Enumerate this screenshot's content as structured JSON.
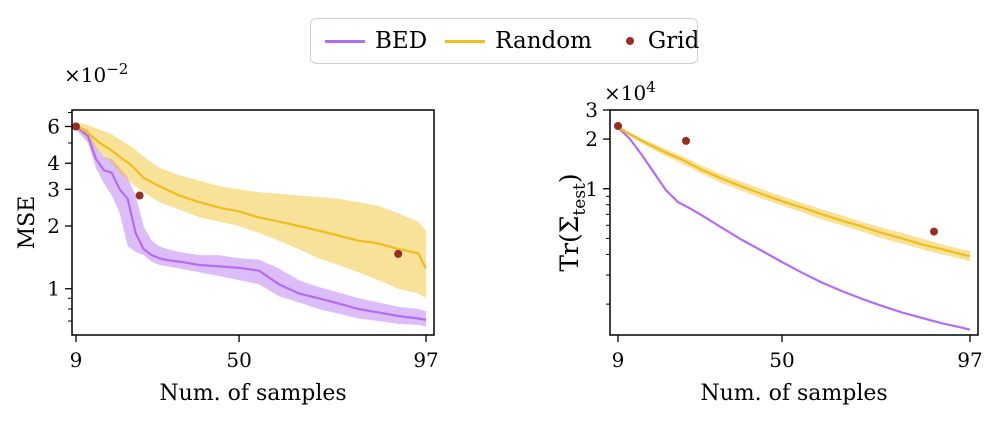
{
  "legend": {
    "items": [
      {
        "label": "BED",
        "color": "#b46cf2",
        "kind": "line"
      },
      {
        "label": "Random",
        "color": "#efbd1d",
        "kind": "line"
      },
      {
        "label": "Grid",
        "color": "#962c24",
        "kind": "dot"
      }
    ]
  },
  "chart_data": [
    {
      "type": "line",
      "yscale": "log",
      "xlabel": "Num. of samples",
      "ylabel": "MSE",
      "y_exponent_label": "×10",
      "y_exponent_power": "−2",
      "xlim": [
        8,
        99
      ],
      "ylim": [
        0.6,
        7.2
      ],
      "xticks": [
        9,
        50,
        97
      ],
      "yticks": [
        {
          "v": 1,
          "label": "1"
        },
        {
          "v": 2,
          "label": "2"
        },
        {
          "v": 3,
          "label": "3"
        },
        {
          "v": 4,
          "label": "4"
        },
        {
          "v": 6,
          "label": "6"
        }
      ],
      "yminor": [
        0.7,
        0.8,
        0.9,
        5,
        7
      ],
      "series": [
        {
          "name": "BED",
          "color": "#b46cf2",
          "x": [
            9,
            12,
            14,
            16,
            18,
            20,
            22,
            24,
            26,
            28,
            30,
            32,
            35,
            40,
            45,
            50,
            55,
            60,
            65,
            70,
            75,
            80,
            85,
            90,
            95,
            97
          ],
          "y": [
            6.0,
            5.4,
            4.2,
            3.7,
            3.6,
            3.0,
            2.7,
            1.85,
            1.55,
            1.45,
            1.4,
            1.37,
            1.35,
            1.3,
            1.28,
            1.26,
            1.22,
            1.05,
            0.95,
            0.9,
            0.85,
            0.8,
            0.77,
            0.74,
            0.72,
            0.71
          ],
          "lower": [
            5.8,
            5.0,
            3.8,
            3.2,
            2.8,
            2.3,
            1.6,
            1.5,
            1.45,
            1.35,
            1.3,
            1.28,
            1.25,
            1.2,
            1.15,
            1.1,
            1.05,
            0.92,
            0.86,
            0.8,
            0.76,
            0.72,
            0.7,
            0.68,
            0.67,
            0.66
          ],
          "upper": [
            6.1,
            5.8,
            4.8,
            4.3,
            4.2,
            3.8,
            3.4,
            2.8,
            2.0,
            1.7,
            1.6,
            1.55,
            1.5,
            1.45,
            1.45,
            1.4,
            1.38,
            1.25,
            1.1,
            1.02,
            0.96,
            0.9,
            0.86,
            0.82,
            0.8,
            0.78
          ]
        },
        {
          "name": "Random",
          "color": "#efbd1d",
          "x": [
            9,
            12,
            15,
            18,
            20,
            23,
            26,
            30,
            35,
            40,
            45,
            50,
            55,
            60,
            65,
            70,
            75,
            80,
            85,
            90,
            95,
            97
          ],
          "y": [
            6.1,
            5.6,
            5.0,
            4.6,
            4.3,
            3.9,
            3.4,
            3.1,
            2.8,
            2.6,
            2.45,
            2.35,
            2.2,
            2.1,
            2.0,
            1.9,
            1.8,
            1.7,
            1.65,
            1.55,
            1.48,
            1.25
          ],
          "lower": [
            5.9,
            5.2,
            4.5,
            4.0,
            3.6,
            3.2,
            2.9,
            2.6,
            2.4,
            2.2,
            2.1,
            2.0,
            1.85,
            1.7,
            1.55,
            1.4,
            1.3,
            1.2,
            1.1,
            1.0,
            0.95,
            0.9
          ],
          "upper": [
            6.3,
            6.1,
            5.8,
            5.5,
            5.2,
            4.8,
            4.3,
            3.8,
            3.5,
            3.3,
            3.1,
            3.0,
            2.9,
            2.85,
            2.8,
            2.75,
            2.7,
            2.6,
            2.5,
            2.3,
            2.1,
            1.9
          ]
        }
      ],
      "points": {
        "name": "Grid",
        "color": "#962c24",
        "x": [
          9,
          25,
          90
        ],
        "y": [
          6.0,
          2.8,
          1.47
        ]
      }
    },
    {
      "type": "line",
      "yscale": "log",
      "xlabel": "Num. of samples",
      "ylabel_main": "Tr(Σ",
      "ylabel_sub": "test",
      "ylabel_close": ")",
      "y_exponent_label": "×10",
      "y_exponent_power": "4",
      "xlim": [
        7,
        99
      ],
      "ylim": [
        0.13,
        3.0
      ],
      "xticks": [
        9,
        50,
        97
      ],
      "yticks": [
        {
          "v": 1,
          "label": "1"
        },
        {
          "v": 2,
          "label": "2"
        },
        {
          "v": 3,
          "label": "3"
        }
      ],
      "yminor": [
        0.2,
        0.3,
        0.4,
        0.5,
        0.6,
        0.7,
        0.8,
        0.9
      ],
      "series": [
        {
          "name": "BED",
          "color": "#b46cf2",
          "x": [
            9,
            12,
            15,
            18,
            21,
            24,
            27,
            30,
            35,
            40,
            45,
            50,
            55,
            60,
            65,
            70,
            75,
            80,
            85,
            90,
            95,
            97
          ],
          "y": [
            2.35,
            2.0,
            1.6,
            1.25,
            0.98,
            0.83,
            0.76,
            0.69,
            0.58,
            0.49,
            0.42,
            0.36,
            0.31,
            0.27,
            0.24,
            0.215,
            0.195,
            0.178,
            0.165,
            0.153,
            0.144,
            0.14
          ],
          "lower": [
            2.35,
            2.0,
            1.6,
            1.25,
            0.98,
            0.83,
            0.76,
            0.69,
            0.58,
            0.49,
            0.42,
            0.36,
            0.31,
            0.27,
            0.24,
            0.215,
            0.195,
            0.178,
            0.165,
            0.153,
            0.144,
            0.14
          ],
          "upper": [
            2.35,
            2.0,
            1.6,
            1.25,
            0.98,
            0.83,
            0.76,
            0.69,
            0.58,
            0.49,
            0.42,
            0.36,
            0.31,
            0.27,
            0.24,
            0.215,
            0.195,
            0.178,
            0.165,
            0.153,
            0.144,
            0.14
          ]
        },
        {
          "name": "Random",
          "color": "#efbd1d",
          "x": [
            9,
            15,
            20,
            25,
            30,
            35,
            40,
            45,
            50,
            55,
            60,
            65,
            70,
            75,
            80,
            85,
            90,
            95,
            97
          ],
          "y": [
            2.35,
            1.95,
            1.7,
            1.5,
            1.3,
            1.15,
            1.03,
            0.93,
            0.84,
            0.77,
            0.7,
            0.64,
            0.59,
            0.54,
            0.5,
            0.46,
            0.43,
            0.4,
            0.39
          ],
          "lower": [
            2.3,
            1.88,
            1.62,
            1.42,
            1.23,
            1.08,
            0.97,
            0.87,
            0.79,
            0.72,
            0.65,
            0.6,
            0.55,
            0.5,
            0.465,
            0.43,
            0.4,
            0.375,
            0.365
          ],
          "upper": [
            2.4,
            2.02,
            1.78,
            1.58,
            1.38,
            1.22,
            1.1,
            0.99,
            0.9,
            0.82,
            0.75,
            0.69,
            0.63,
            0.58,
            0.54,
            0.5,
            0.46,
            0.43,
            0.42
          ]
        }
      ],
      "points": {
        "name": "Grid",
        "color": "#962c24",
        "x": [
          9,
          26,
          88
        ],
        "y": [
          2.4,
          1.95,
          0.55
        ]
      }
    }
  ]
}
